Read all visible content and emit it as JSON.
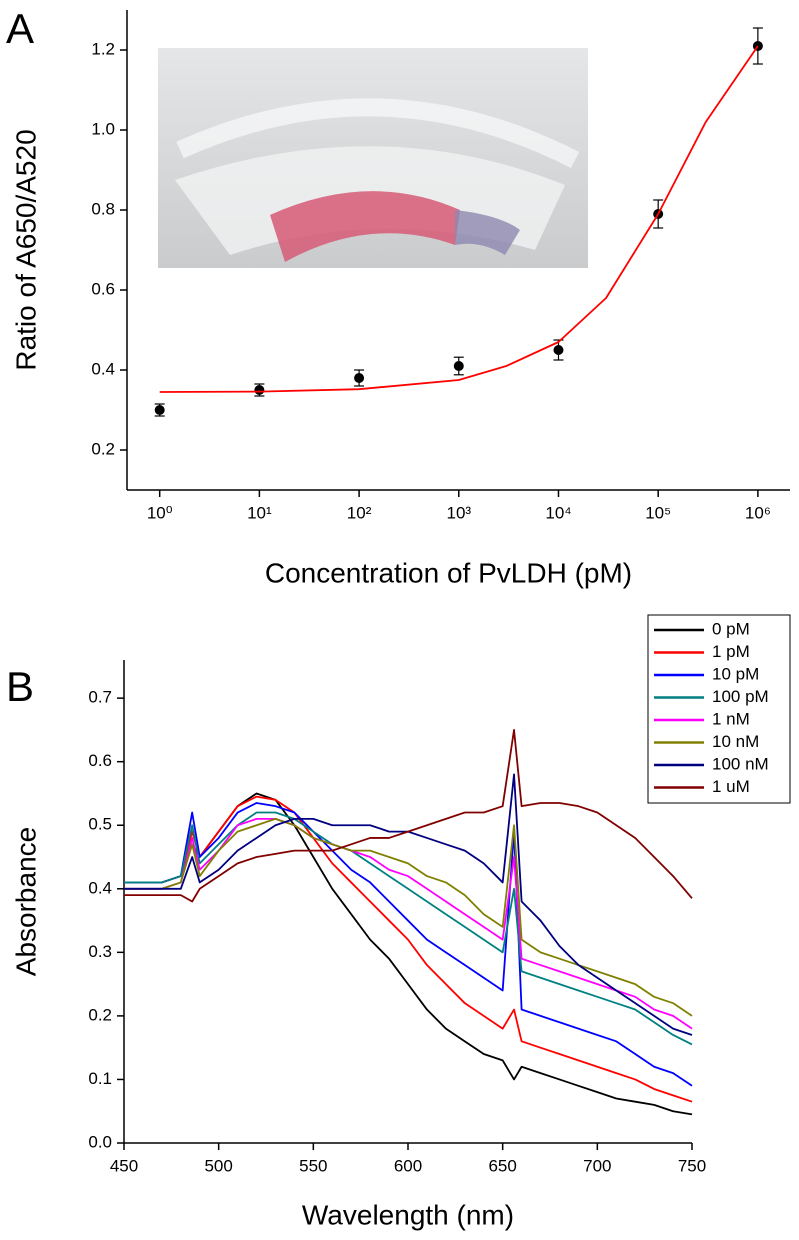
{
  "chart_data": [
    {
      "type": "scatter",
      "panel_label": "A",
      "x_label": "Concentration of PvLDH (pM)",
      "y_label": "Ratio of A650/A520",
      "log_x": true,
      "xlim": [
        0.47,
        2100000
      ],
      "ylim": [
        0.1,
        1.3
      ],
      "xticks": [
        {
          "value": 1,
          "label": "10⁰"
        },
        {
          "value": 10,
          "label": "10¹"
        },
        {
          "value": 100,
          "label": "10²"
        },
        {
          "value": 1000,
          "label": "10³"
        },
        {
          "value": 10000,
          "label": "10⁴"
        },
        {
          "value": 100000,
          "label": "10⁵"
        },
        {
          "value": 1000000,
          "label": "10⁶"
        }
      ],
      "yticks": [
        0.2,
        0.4,
        0.6,
        0.8,
        {
          "value": 1.0,
          "label": "1.0"
        },
        1.2
      ],
      "series": [
        {
          "type": "scatter",
          "color": "#000000",
          "x": [
            1,
            10,
            100,
            1000,
            10000,
            100000,
            1000000
          ],
          "values": [
            0.3,
            0.35,
            0.38,
            0.41,
            0.45,
            0.79,
            1.21
          ],
          "errors": [
            0.015,
            0.015,
            0.02,
            0.022,
            0.025,
            0.035,
            0.045
          ]
        },
        {
          "type": "line",
          "color": "#ff0000",
          "x": [
            1,
            10,
            100,
            1000,
            3000,
            10000,
            30000,
            100000,
            300000,
            1000000
          ],
          "values": [
            0.345,
            0.346,
            0.352,
            0.375,
            0.41,
            0.47,
            0.58,
            0.79,
            1.02,
            1.21
          ]
        }
      ]
    },
    {
      "type": "line",
      "panel_label": "B",
      "x_label": "Wavelength (nm)",
      "y_label": "Absorbance",
      "xlim": [
        450,
        750
      ],
      "ylim": [
        0,
        0.76
      ],
      "xticks": [
        450,
        500,
        550,
        600,
        650,
        700,
        750
      ],
      "yticks": [
        {
          "value": 0,
          "label": "0.0"
        },
        0.1,
        0.2,
        0.3,
        0.4,
        0.5,
        0.6,
        0.7
      ],
      "legend": "upper right",
      "x": [
        450,
        460,
        470,
        480,
        486,
        490,
        500,
        510,
        520,
        530,
        540,
        550,
        560,
        570,
        580,
        590,
        600,
        610,
        620,
        630,
        640,
        650,
        656,
        660,
        670,
        680,
        690,
        700,
        710,
        720,
        730,
        740,
        750
      ],
      "series": [
        {
          "name": "0 pM",
          "color": "#000000",
          "values": [
            0.41,
            0.41,
            0.41,
            0.42,
            0.47,
            0.45,
            0.49,
            0.53,
            0.55,
            0.54,
            0.5,
            0.45,
            0.4,
            0.36,
            0.32,
            0.29,
            0.25,
            0.21,
            0.18,
            0.16,
            0.14,
            0.13,
            0.1,
            0.12,
            0.11,
            0.1,
            0.09,
            0.08,
            0.07,
            0.065,
            0.06,
            0.05,
            0.045
          ]
        },
        {
          "name": "1 pM",
          "color": "#ff0000",
          "values": [
            0.41,
            0.41,
            0.41,
            0.42,
            0.49,
            0.45,
            0.49,
            0.53,
            0.545,
            0.54,
            0.52,
            0.48,
            0.44,
            0.41,
            0.38,
            0.35,
            0.32,
            0.28,
            0.25,
            0.22,
            0.2,
            0.18,
            0.21,
            0.16,
            0.15,
            0.14,
            0.13,
            0.12,
            0.11,
            0.1,
            0.085,
            0.075,
            0.065
          ]
        },
        {
          "name": "10 pM",
          "color": "#0000ff",
          "values": [
            0.41,
            0.41,
            0.41,
            0.42,
            0.52,
            0.45,
            0.48,
            0.52,
            0.535,
            0.53,
            0.52,
            0.49,
            0.46,
            0.43,
            0.41,
            0.38,
            0.35,
            0.32,
            0.3,
            0.28,
            0.26,
            0.24,
            0.49,
            0.21,
            0.2,
            0.19,
            0.18,
            0.17,
            0.16,
            0.14,
            0.12,
            0.11,
            0.09
          ]
        },
        {
          "name": "100 pM",
          "color": "#008080",
          "values": [
            0.41,
            0.41,
            0.41,
            0.42,
            0.5,
            0.44,
            0.47,
            0.5,
            0.52,
            0.52,
            0.51,
            0.49,
            0.47,
            0.46,
            0.44,
            0.42,
            0.4,
            0.38,
            0.36,
            0.34,
            0.32,
            0.3,
            0.4,
            0.27,
            0.26,
            0.25,
            0.24,
            0.23,
            0.22,
            0.21,
            0.19,
            0.17,
            0.155
          ]
        },
        {
          "name": "1 nM",
          "color": "#ff00ff",
          "values": [
            0.4,
            0.4,
            0.4,
            0.41,
            0.48,
            0.43,
            0.46,
            0.5,
            0.51,
            0.51,
            0.5,
            0.48,
            0.47,
            0.46,
            0.45,
            0.43,
            0.42,
            0.4,
            0.38,
            0.36,
            0.34,
            0.32,
            0.45,
            0.29,
            0.28,
            0.27,
            0.26,
            0.25,
            0.24,
            0.23,
            0.21,
            0.2,
            0.18
          ]
        },
        {
          "name": "10 nM",
          "color": "#808000",
          "values": [
            0.4,
            0.4,
            0.4,
            0.41,
            0.47,
            0.42,
            0.46,
            0.49,
            0.5,
            0.51,
            0.5,
            0.48,
            0.47,
            0.46,
            0.46,
            0.45,
            0.44,
            0.42,
            0.41,
            0.39,
            0.36,
            0.34,
            0.5,
            0.32,
            0.3,
            0.29,
            0.28,
            0.27,
            0.26,
            0.25,
            0.23,
            0.22,
            0.2
          ]
        },
        {
          "name": "100 nM",
          "color": "#000080",
          "values": [
            0.4,
            0.4,
            0.4,
            0.4,
            0.45,
            0.41,
            0.43,
            0.46,
            0.48,
            0.5,
            0.51,
            0.51,
            0.5,
            0.5,
            0.5,
            0.49,
            0.49,
            0.48,
            0.47,
            0.46,
            0.44,
            0.41,
            0.58,
            0.38,
            0.35,
            0.31,
            0.28,
            0.26,
            0.24,
            0.22,
            0.2,
            0.18,
            0.17
          ]
        },
        {
          "name": "1 uM",
          "color": "#800000",
          "values": [
            0.39,
            0.39,
            0.39,
            0.39,
            0.38,
            0.4,
            0.42,
            0.44,
            0.45,
            0.455,
            0.46,
            0.46,
            0.46,
            0.47,
            0.48,
            0.48,
            0.49,
            0.5,
            0.51,
            0.52,
            0.52,
            0.53,
            0.65,
            0.53,
            0.535,
            0.535,
            0.53,
            0.52,
            0.5,
            0.48,
            0.45,
            0.42,
            0.385
          ]
        }
      ]
    }
  ]
}
